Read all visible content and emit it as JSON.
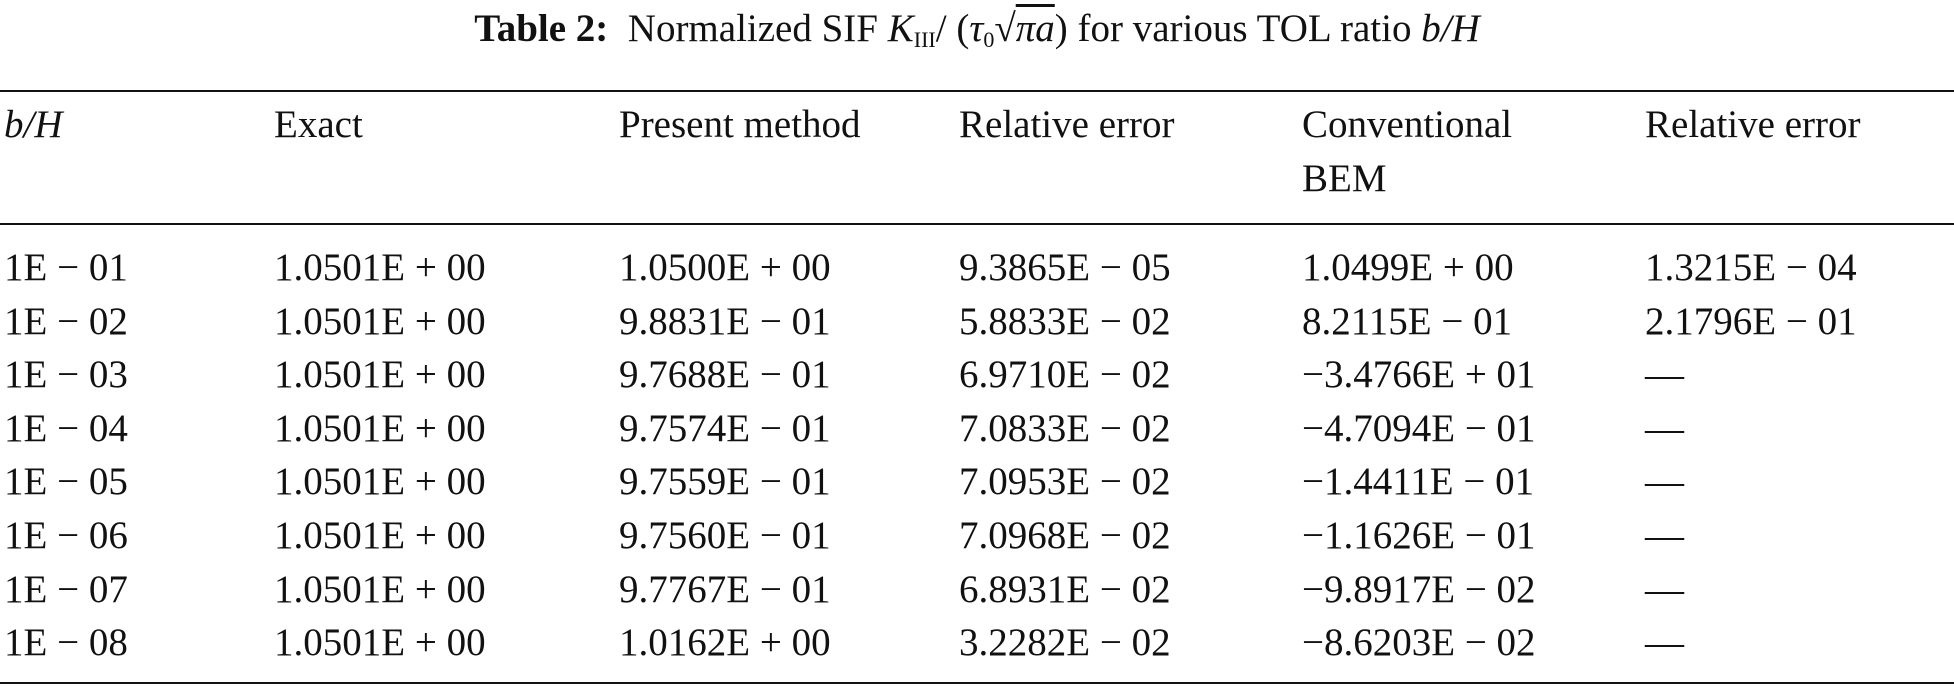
{
  "caption": {
    "label": "Table 2:",
    "segments": [
      "Normalized SIF",
      "K",
      "III",
      "/",
      "(",
      "τ",
      "0",
      "√",
      "πa",
      ")",
      "for various TOL ratio",
      "b/H"
    ]
  },
  "table": {
    "header": [
      "b/H",
      "Exact",
      "Present method",
      "Relative error",
      "Conventional BEM",
      "Relative error"
    ],
    "rows": [
      [
        "1E − 01",
        "1.0501E + 00",
        "1.0500E + 00",
        "9.3865E − 05",
        "1.0499E + 00",
        "1.3215E − 04"
      ],
      [
        "1E − 02",
        "1.0501E + 00",
        "9.8831E − 01",
        "5.8833E − 02",
        "8.2115E − 01",
        "2.1796E − 01"
      ],
      [
        "1E − 03",
        "1.0501E + 00",
        "9.7688E − 01",
        "6.9710E − 02",
        "−3.4766E + 01",
        "—"
      ],
      [
        "1E − 04",
        "1.0501E + 00",
        "9.7574E − 01",
        "7.0833E − 02",
        "−4.7094E − 01",
        "—"
      ],
      [
        "1E − 05",
        "1.0501E + 00",
        "9.7559E − 01",
        "7.0953E − 02",
        "−1.4411E − 01",
        "—"
      ],
      [
        "1E − 06",
        "1.0501E + 00",
        "9.7560E − 01",
        "7.0968E − 02",
        "−1.1626E − 01",
        "—"
      ],
      [
        "1E − 07",
        "1.0501E + 00",
        "9.7767E − 01",
        "6.8931E − 02",
        "−9.8917E − 02",
        "—"
      ],
      [
        "1E − 08",
        "1.0501E + 00",
        "1.0162E + 00",
        "3.2282E − 02",
        "−8.6203E − 02",
        "—"
      ]
    ]
  }
}
